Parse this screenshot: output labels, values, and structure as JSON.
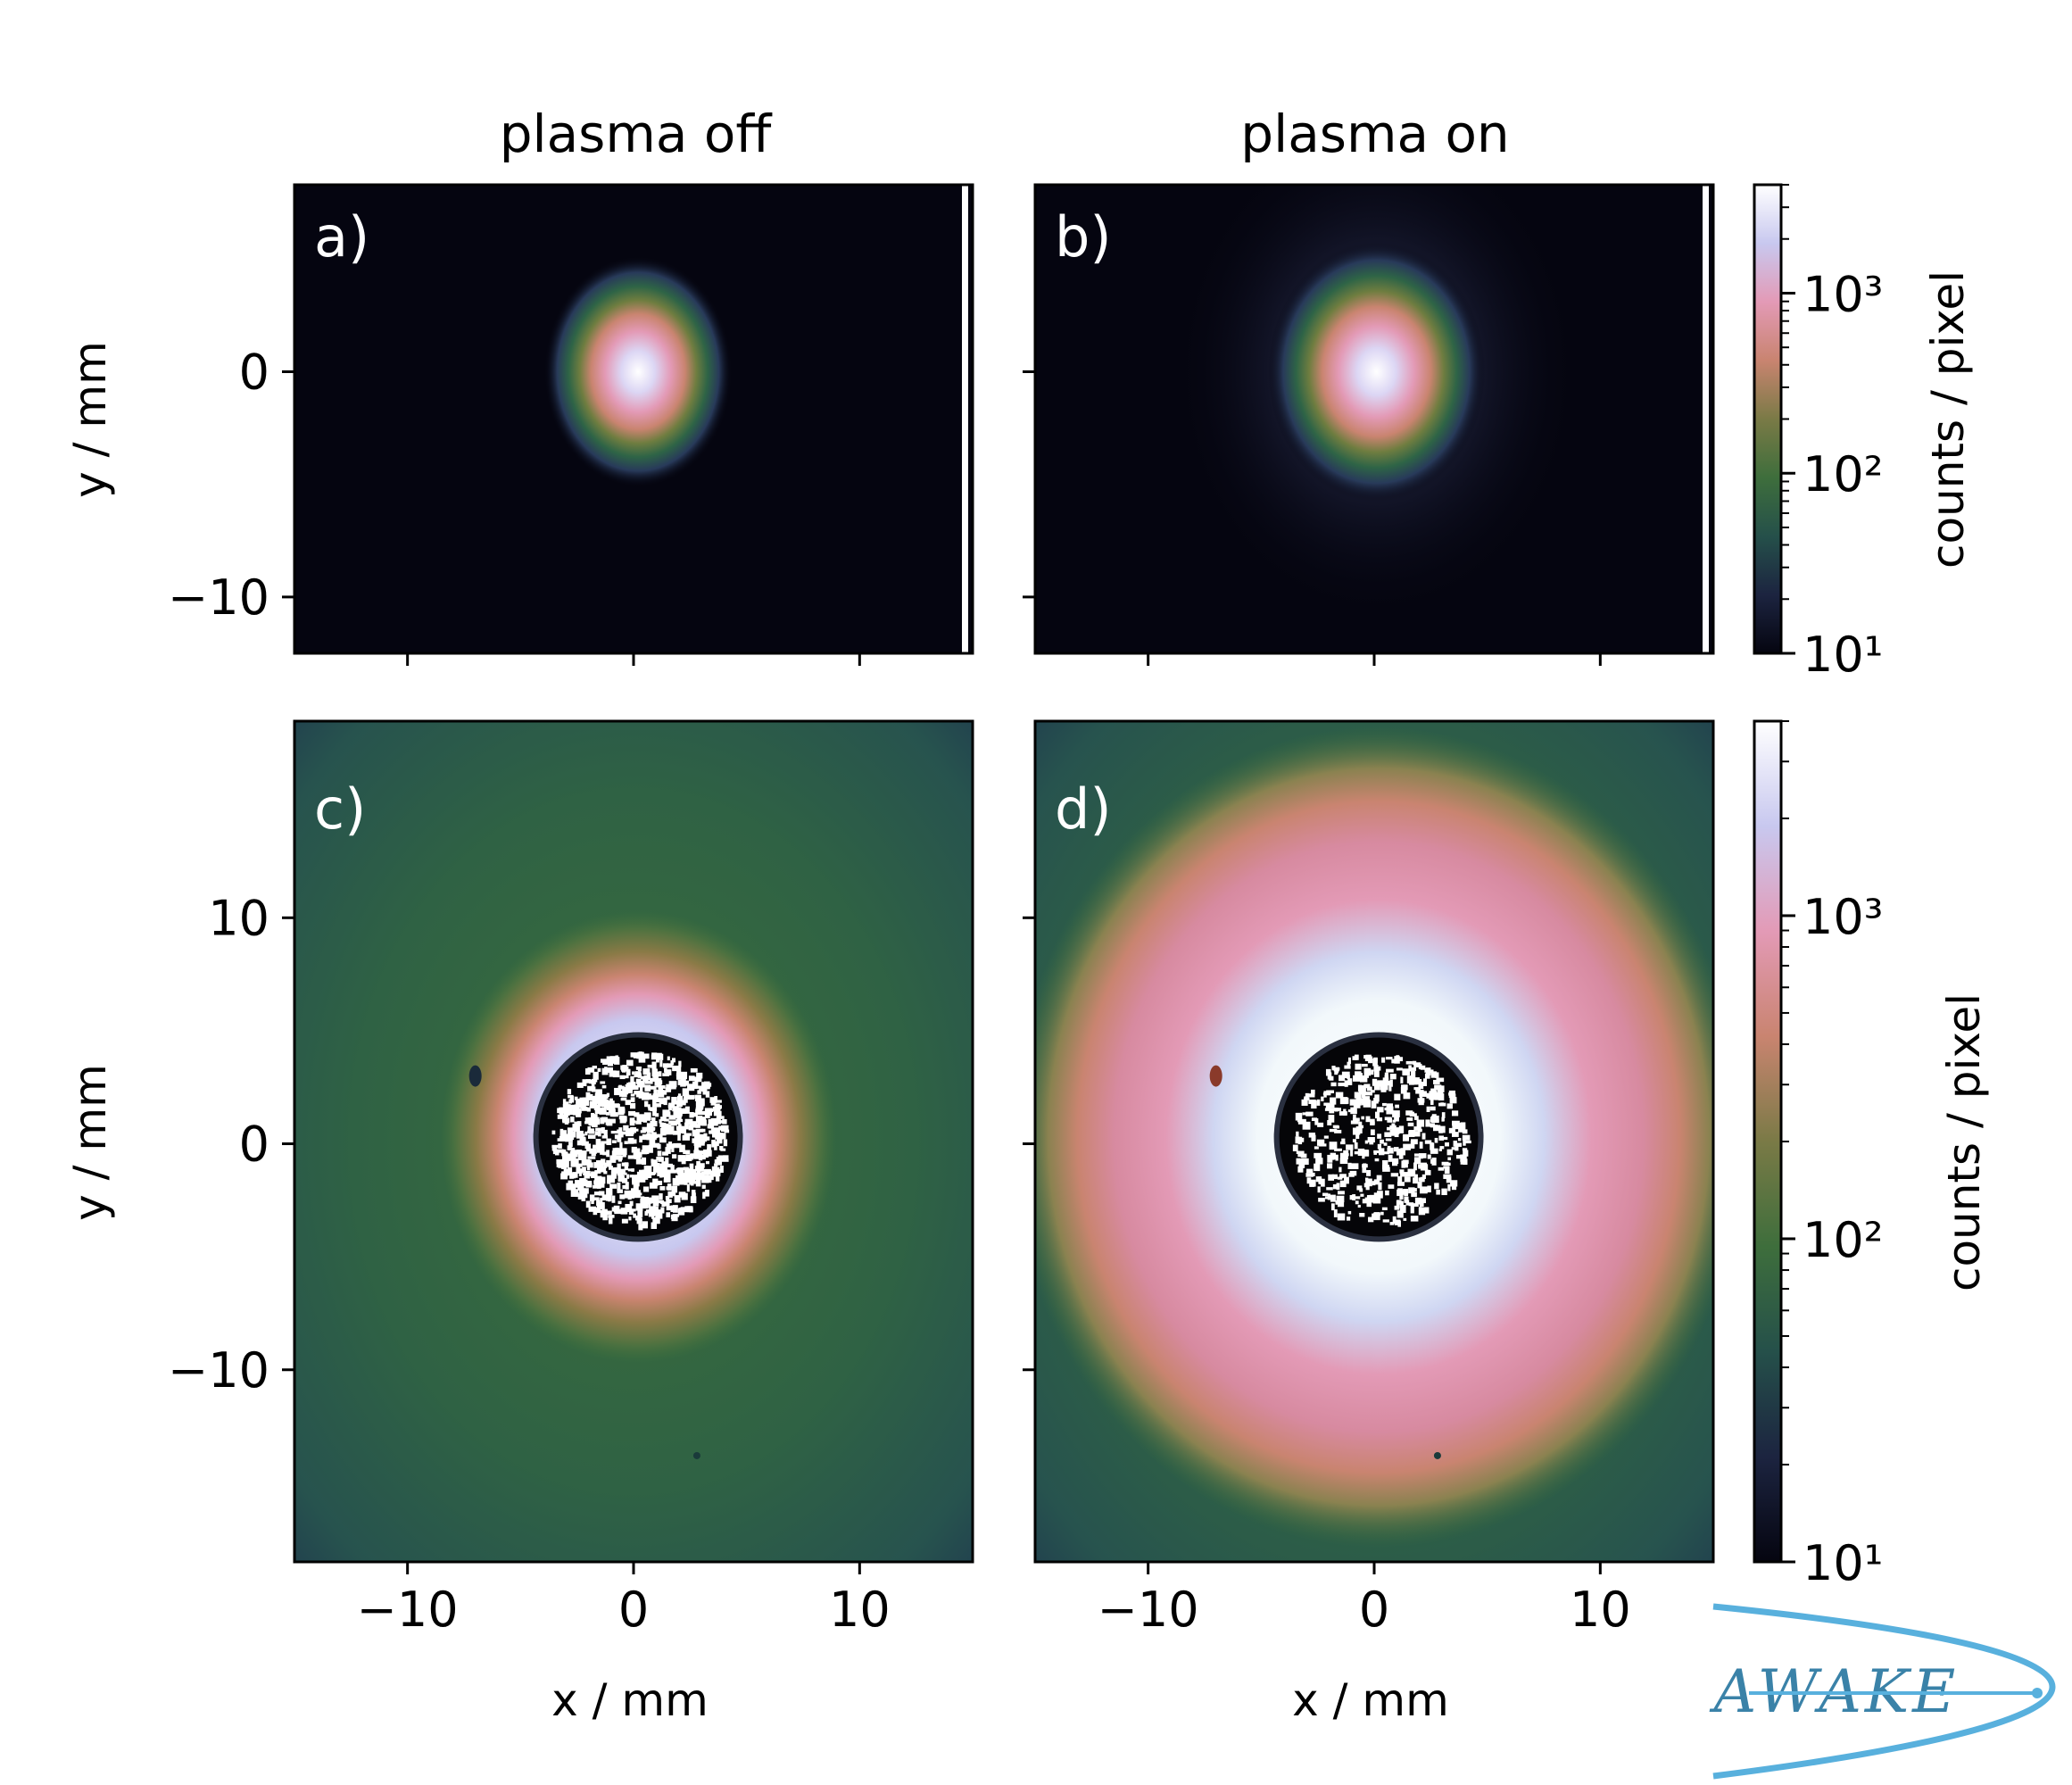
{
  "chart_data": [
    {
      "type": "heatmap",
      "panel_label": "a)",
      "column_title": "plasma off",
      "xlabel": "",
      "ylabel": "y / mm",
      "xlim": [
        -15,
        15
      ],
      "ylim": [
        -12.5,
        8.3
      ],
      "xticks": [
        -10,
        0,
        10
      ],
      "xticklabels": [
        "",
        "",
        ""
      ],
      "yticks": [
        -10,
        0
      ],
      "yticklabels": [
        "−10",
        "0"
      ],
      "scale": "log",
      "colorbar": {
        "label": "counts / pixel",
        "ticklabels": [
          "10¹",
          "10²",
          "10³"
        ],
        "range": [
          10,
          4000
        ]
      },
      "features": [
        {
          "kind": "gaussian-spot",
          "center": [
            0.2,
            0
          ],
          "sigma": [
            1.3,
            1.6
          ],
          "peak_counts": 4000
        }
      ]
    },
    {
      "type": "heatmap",
      "panel_label": "b)",
      "column_title": "plasma on",
      "xlabel": "",
      "ylabel": "",
      "xlim": [
        -15,
        15
      ],
      "ylim": [
        -12.5,
        8.3
      ],
      "xticks": [
        -10,
        0,
        10
      ],
      "xticklabels": [
        "",
        "",
        ""
      ],
      "yticks": [
        -10,
        0
      ],
      "yticklabels": [
        "",
        ""
      ],
      "scale": "log",
      "features": [
        {
          "kind": "gaussian-spot",
          "center": [
            0.1,
            0
          ],
          "sigma": [
            1.5,
            1.8
          ],
          "peak_counts": 4000,
          "halo_sigma": [
            4.5,
            5.5
          ]
        }
      ]
    },
    {
      "type": "heatmap",
      "panel_label": "c)",
      "xlabel": "x / mm",
      "ylabel": "y / mm",
      "xlim": [
        -15,
        15
      ],
      "ylim": [
        -18.5,
        18.7
      ],
      "xticks": [
        -10,
        0,
        10
      ],
      "xticklabels": [
        "−10",
        "0",
        "10"
      ],
      "yticks": [
        -10,
        0,
        10
      ],
      "yticklabels": [
        "−10",
        "0",
        "10"
      ],
      "scale": "log",
      "colorbar": {
        "label": "counts / pixel",
        "ticklabels": [
          "10¹",
          "10²",
          "10³"
        ],
        "range": [
          10,
          4000
        ]
      },
      "features": [
        {
          "kind": "halo-with-blocked-core",
          "center": [
            0.2,
            0.3
          ],
          "core_radius_mm": 4.4,
          "halo_extent_mm": [
            7,
            8
          ]
        }
      ]
    },
    {
      "type": "heatmap",
      "panel_label": "d)",
      "xlabel": "x / mm",
      "ylabel": "",
      "xlim": [
        -15,
        15
      ],
      "ylim": [
        -18.5,
        18.7
      ],
      "xticks": [
        -10,
        0,
        10
      ],
      "xticklabels": [
        "−10",
        "0",
        "10"
      ],
      "yticks": [
        -10,
        0,
        10
      ],
      "yticklabels": [
        "",
        "",
        ""
      ],
      "scale": "log",
      "features": [
        {
          "kind": "halo-with-blocked-core",
          "center": [
            0.2,
            0.3
          ],
          "core_radius_mm": 4.4,
          "halo_extent_mm": [
            13,
            14.5
          ]
        }
      ]
    }
  ],
  "colormap": {
    "name": "cubehelix-like",
    "stops": [
      "#050510",
      "#1c2440",
      "#25504a",
      "#3e6e3c",
      "#7a7a46",
      "#c98470",
      "#e39ab6",
      "#c8c8ef",
      "#ffffff"
    ]
  },
  "logo": {
    "text": "AWAKE",
    "color": "#58b0dd"
  }
}
